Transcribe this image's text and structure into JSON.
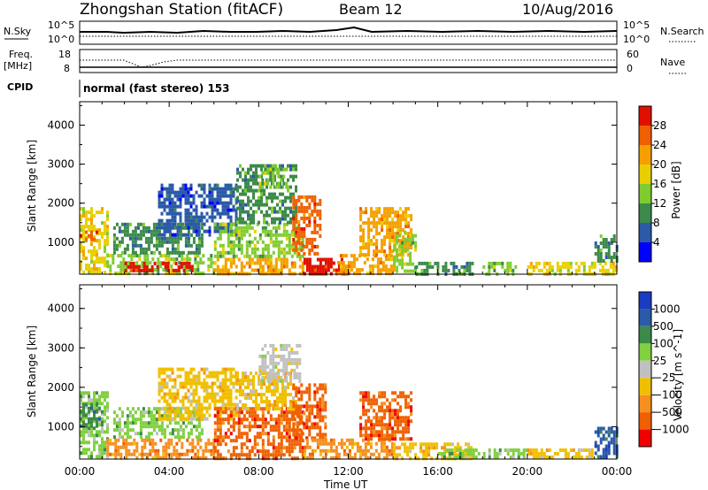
{
  "header": {
    "station": "Zhongshan Station (fitACF)",
    "beam": "Beam 12",
    "date": "10/Aug/2016"
  },
  "strips": {
    "nsky_label": "N.Sky",
    "nsky_ticks": [
      "10^5",
      "10^0"
    ],
    "nsearch_label": "N.Search",
    "nsearch_ticks": [
      "10^5",
      "10^0"
    ],
    "freq_label": "Freq.",
    "freq_unit": "[MHz]",
    "freq_ticks": [
      "18",
      "8"
    ],
    "nave_label": "Nave",
    "nave_ticks": [
      "60",
      "0"
    ],
    "cpid_label": "CPID",
    "cpid_value": "normal (fast stereo) 153"
  },
  "x_axis": {
    "label": "Time UT",
    "ticks": [
      "00:00",
      "04:00",
      "08:00",
      "12:00",
      "16:00",
      "20:00",
      "00:00"
    ],
    "range_hours": [
      0,
      24
    ]
  },
  "colors": {
    "power": [
      "#0000ff",
      "#2b5aa8",
      "#3c8a4a",
      "#80cc30",
      "#e8d000",
      "#f5a000",
      "#f06000",
      "#e01000"
    ],
    "velocity": [
      "#f00000",
      "#f06000",
      "#f59020",
      "#f0c000",
      "#c0c0c0",
      "#80d040",
      "#3c8a4a",
      "#2b5aa8",
      "#1a3cc0"
    ]
  },
  "chart_data": [
    {
      "type": "heatmap",
      "name": "power",
      "ylabel": "Slant Range [km]",
      "yticks": [
        "4000",
        "3000",
        "2000",
        "1000"
      ],
      "ylim": [
        180,
        4600
      ],
      "xlabel": "",
      "colorbar_label": "Power [dB]",
      "colorbar_ticks": [
        "28",
        "24",
        "20",
        "16",
        "12",
        "8",
        "4"
      ],
      "regions": [
        {
          "t0": 0.0,
          "t1": 1.2,
          "r0": 200,
          "r1": 1900,
          "level": 4
        },
        {
          "t0": 0.0,
          "t1": 0.8,
          "r0": 1100,
          "r1": 1300,
          "level": 6
        },
        {
          "t0": 1.2,
          "t1": 6.0,
          "r0": 200,
          "r1": 700,
          "level": 3
        },
        {
          "t0": 2.0,
          "t1": 5.0,
          "r0": 250,
          "r1": 500,
          "level": 7
        },
        {
          "t0": 1.5,
          "t1": 5.5,
          "r0": 700,
          "r1": 1500,
          "level": 2
        },
        {
          "t0": 3.5,
          "t1": 7.0,
          "r0": 1200,
          "r1": 2500,
          "level": 1
        },
        {
          "t0": 6.0,
          "t1": 10.0,
          "r0": 200,
          "r1": 600,
          "level": 5
        },
        {
          "t0": 6.0,
          "t1": 10.0,
          "r0": 600,
          "r1": 1500,
          "level": 3
        },
        {
          "t0": 7.0,
          "t1": 9.7,
          "r0": 1500,
          "r1": 3000,
          "level": 2
        },
        {
          "t0": 8.0,
          "t1": 9.3,
          "r0": 2400,
          "r1": 3000,
          "level": 3
        },
        {
          "t0": 9.5,
          "t1": 10.8,
          "r0": 700,
          "r1": 2200,
          "level": 6
        },
        {
          "t0": 10.0,
          "t1": 12.0,
          "r0": 200,
          "r1": 600,
          "level": 7
        },
        {
          "t0": 11.5,
          "t1": 14.0,
          "r0": 200,
          "r1": 700,
          "level": 5
        },
        {
          "t0": 12.5,
          "t1": 14.8,
          "r0": 700,
          "r1": 1900,
          "level": 5
        },
        {
          "t0": 14.0,
          "t1": 15.0,
          "r0": 250,
          "r1": 1300,
          "level": 3
        },
        {
          "t0": 15.0,
          "t1": 17.5,
          "r0": 200,
          "r1": 500,
          "level": 2
        },
        {
          "t0": 18.0,
          "t1": 19.5,
          "r0": 200,
          "r1": 500,
          "level": 3
        },
        {
          "t0": 20.0,
          "t1": 24.0,
          "r0": 200,
          "r1": 500,
          "level": 4
        },
        {
          "t0": 23.0,
          "t1": 24.0,
          "r0": 500,
          "r1": 1200,
          "level": 2
        }
      ]
    },
    {
      "type": "heatmap",
      "name": "velocity",
      "ylabel": "Slant Range [km]",
      "yticks": [
        "4000",
        "3000",
        "2000",
        "1000"
      ],
      "ylim": [
        180,
        4600
      ],
      "xlabel": "Time UT",
      "colorbar_label": "Velocity [m s^-1]",
      "colorbar_ticks": [
        "1000",
        "500",
        "100",
        "25",
        "−25",
        "−100",
        "−500",
        "−1000"
      ],
      "regions": [
        {
          "t0": 0.0,
          "t1": 1.2,
          "r0": 200,
          "r1": 1900,
          "level": 5
        },
        {
          "t0": 0.0,
          "t1": 1.0,
          "r0": 1000,
          "r1": 1600,
          "level": 6
        },
        {
          "t0": 1.2,
          "t1": 6.0,
          "r0": 200,
          "r1": 700,
          "level": 2
        },
        {
          "t0": 1.5,
          "t1": 5.5,
          "r0": 700,
          "r1": 1500,
          "level": 5
        },
        {
          "t0": 3.5,
          "t1": 7.0,
          "r0": 1200,
          "r1": 2500,
          "level": 3
        },
        {
          "t0": 6.0,
          "t1": 10.0,
          "r0": 200,
          "r1": 1500,
          "level": 1
        },
        {
          "t0": 7.0,
          "t1": 9.7,
          "r0": 1500,
          "r1": 2400,
          "level": 3
        },
        {
          "t0": 8.0,
          "t1": 9.8,
          "r0": 2200,
          "r1": 3100,
          "level": 4
        },
        {
          "t0": 9.5,
          "t1": 11.0,
          "r0": 700,
          "r1": 2100,
          "level": 1
        },
        {
          "t0": 10.0,
          "t1": 14.0,
          "r0": 200,
          "r1": 700,
          "level": 2
        },
        {
          "t0": 12.5,
          "t1": 14.8,
          "r0": 700,
          "r1": 1900,
          "level": 1
        },
        {
          "t0": 14.0,
          "t1": 17.5,
          "r0": 200,
          "r1": 600,
          "level": 3
        },
        {
          "t0": 16.0,
          "t1": 20.0,
          "r0": 200,
          "r1": 450,
          "level": 5
        },
        {
          "t0": 20.0,
          "t1": 23.0,
          "r0": 200,
          "r1": 450,
          "level": 3
        },
        {
          "t0": 23.0,
          "t1": 24.0,
          "r0": 200,
          "r1": 1000,
          "level": 7
        }
      ]
    }
  ]
}
